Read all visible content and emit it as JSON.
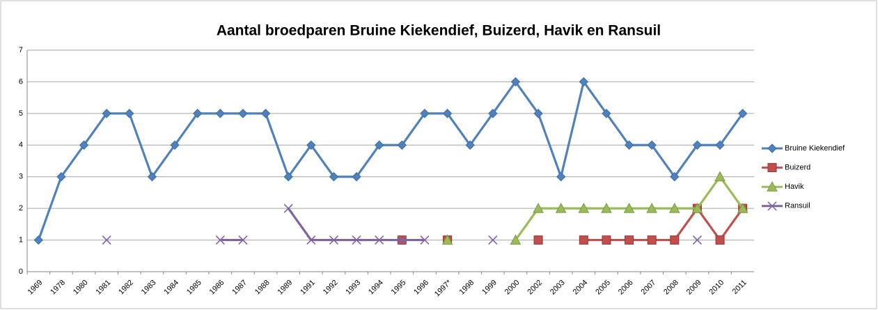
{
  "chart_data": {
    "type": "line",
    "title": "Aantal broedparen Bruine Kiekendief, Buizerd, Havik en Ransuil",
    "categories": [
      "1969",
      "1978",
      "1980",
      "1981",
      "1982",
      "1983",
      "1984",
      "1985",
      "1986",
      "1987",
      "1988",
      "1989",
      "1991",
      "1992",
      "1993",
      "1994",
      "1995",
      "1996",
      "1997*",
      "1998",
      "1999",
      "2000",
      "2002",
      "2003",
      "2004",
      "2005",
      "2006",
      "2007",
      "2008",
      "2009",
      "2010",
      "2011"
    ],
    "series": [
      {
        "name": "Bruine Kiekendief",
        "color": "#4f81bd",
        "marker": "diamond",
        "values": [
          1,
          3,
          4,
          5,
          5,
          3,
          4,
          5,
          5,
          5,
          5,
          3,
          4,
          3,
          3,
          4,
          4,
          5,
          5,
          4,
          5,
          6,
          5,
          3,
          6,
          5,
          4,
          4,
          3,
          4,
          4,
          5
        ]
      },
      {
        "name": "Buizerd",
        "color": "#c0504d",
        "marker": "square",
        "values": [
          null,
          null,
          null,
          null,
          null,
          null,
          null,
          null,
          null,
          null,
          null,
          null,
          null,
          null,
          null,
          null,
          1,
          null,
          1,
          null,
          null,
          null,
          1,
          null,
          1,
          1,
          1,
          1,
          1,
          2,
          1,
          2
        ]
      },
      {
        "name": "Havik",
        "color": "#9bbb59",
        "marker": "triangle",
        "values": [
          null,
          null,
          null,
          null,
          null,
          null,
          null,
          null,
          null,
          null,
          null,
          null,
          null,
          null,
          null,
          null,
          null,
          null,
          1,
          null,
          null,
          1,
          2,
          2,
          2,
          2,
          2,
          2,
          2,
          2,
          3,
          2
        ]
      },
      {
        "name": "Ransuil",
        "color": "#8064a2",
        "marker": "x",
        "values": [
          null,
          null,
          null,
          1,
          null,
          null,
          null,
          null,
          1,
          1,
          null,
          2,
          1,
          1,
          1,
          1,
          1,
          1,
          null,
          null,
          1,
          null,
          null,
          null,
          null,
          null,
          null,
          null,
          null,
          1,
          null,
          null
        ]
      }
    ],
    "ylim": [
      0,
      7
    ],
    "yticks": [
      0,
      1,
      2,
      3,
      4,
      5,
      6,
      7
    ],
    "grid": true,
    "legend": "right"
  }
}
